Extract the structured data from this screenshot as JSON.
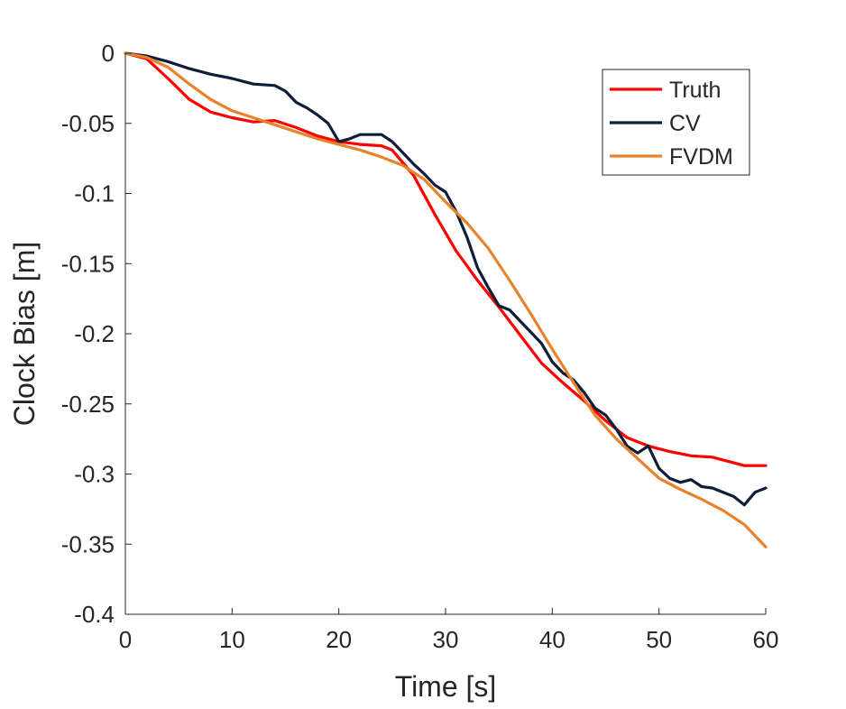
{
  "chart_data": {
    "type": "line",
    "title": "",
    "xlabel": "Time [s]",
    "ylabel": "Clock Bias [m]",
    "xlim": [
      0,
      60
    ],
    "ylim": [
      -0.4,
      0
    ],
    "xticks": [
      0,
      10,
      20,
      30,
      40,
      50,
      60
    ],
    "yticks": [
      0,
      -0.05,
      -0.1,
      -0.15,
      -0.2,
      -0.25,
      -0.3,
      -0.35,
      -0.4
    ],
    "xtick_labels": [
      "0",
      "10",
      "20",
      "30",
      "40",
      "50",
      "60"
    ],
    "ytick_labels": [
      "0",
      "-0.05",
      "-0.1",
      "-0.15",
      "-0.2",
      "-0.25",
      "-0.3",
      "-0.35",
      "-0.4"
    ],
    "grid": false,
    "legend_position": "top-right",
    "series": [
      {
        "name": "Truth",
        "color": "#ff0000",
        "x": [
          0,
          2,
          4,
          6,
          8,
          10,
          12,
          14,
          16,
          18,
          20,
          22,
          24,
          25,
          27,
          29,
          31,
          33,
          35,
          37,
          39,
          41,
          43,
          45,
          47,
          49,
          51,
          53,
          55,
          57,
          58,
          60
        ],
        "y": [
          0,
          -0.004,
          -0.018,
          -0.033,
          -0.042,
          -0.046,
          -0.049,
          -0.048,
          -0.053,
          -0.059,
          -0.063,
          -0.065,
          -0.066,
          -0.069,
          -0.087,
          -0.115,
          -0.141,
          -0.162,
          -0.181,
          -0.201,
          -0.221,
          -0.235,
          -0.248,
          -0.262,
          -0.274,
          -0.28,
          -0.284,
          -0.287,
          -0.288,
          -0.292,
          -0.294,
          -0.294
        ]
      },
      {
        "name": "CV",
        "color": "#0e1d38",
        "x": [
          0,
          2,
          4,
          6,
          8,
          10,
          12,
          14,
          15,
          16,
          17,
          18,
          19,
          20,
          21,
          22,
          23,
          24,
          25,
          26,
          27,
          28,
          29,
          30,
          31,
          32,
          33,
          34,
          35,
          36,
          37,
          38,
          39,
          40,
          41,
          42,
          43,
          44,
          45,
          46,
          47,
          48,
          49,
          50,
          51,
          52,
          53,
          54,
          55,
          56,
          57,
          58,
          59,
          60
        ],
        "y": [
          0,
          -0.002,
          -0.006,
          -0.011,
          -0.015,
          -0.018,
          -0.022,
          -0.023,
          -0.027,
          -0.035,
          -0.039,
          -0.044,
          -0.05,
          -0.063,
          -0.061,
          -0.058,
          -0.058,
          -0.058,
          -0.063,
          -0.071,
          -0.079,
          -0.086,
          -0.094,
          -0.099,
          -0.113,
          -0.131,
          -0.153,
          -0.167,
          -0.18,
          -0.183,
          -0.191,
          -0.199,
          -0.207,
          -0.22,
          -0.228,
          -0.233,
          -0.242,
          -0.253,
          -0.258,
          -0.268,
          -0.28,
          -0.285,
          -0.28,
          -0.296,
          -0.303,
          -0.306,
          -0.304,
          -0.309,
          -0.31,
          -0.313,
          -0.316,
          -0.322,
          -0.313,
          -0.31
        ]
      },
      {
        "name": "FVDM",
        "color": "#e8822b",
        "x": [
          0,
          2,
          4,
          6,
          8,
          10,
          12,
          14,
          16,
          18,
          20,
          22,
          24,
          26,
          28,
          30,
          32,
          34,
          36,
          38,
          40,
          42,
          44,
          46,
          48,
          50,
          52,
          54,
          56,
          58,
          60
        ],
        "y": [
          0,
          -0.003,
          -0.01,
          -0.022,
          -0.033,
          -0.041,
          -0.046,
          -0.051,
          -0.056,
          -0.061,
          -0.065,
          -0.069,
          -0.074,
          -0.08,
          -0.09,
          -0.106,
          -0.121,
          -0.139,
          -0.162,
          -0.186,
          -0.211,
          -0.235,
          -0.258,
          -0.275,
          -0.289,
          -0.303,
          -0.311,
          -0.318,
          -0.326,
          -0.336,
          -0.352
        ]
      }
    ]
  }
}
